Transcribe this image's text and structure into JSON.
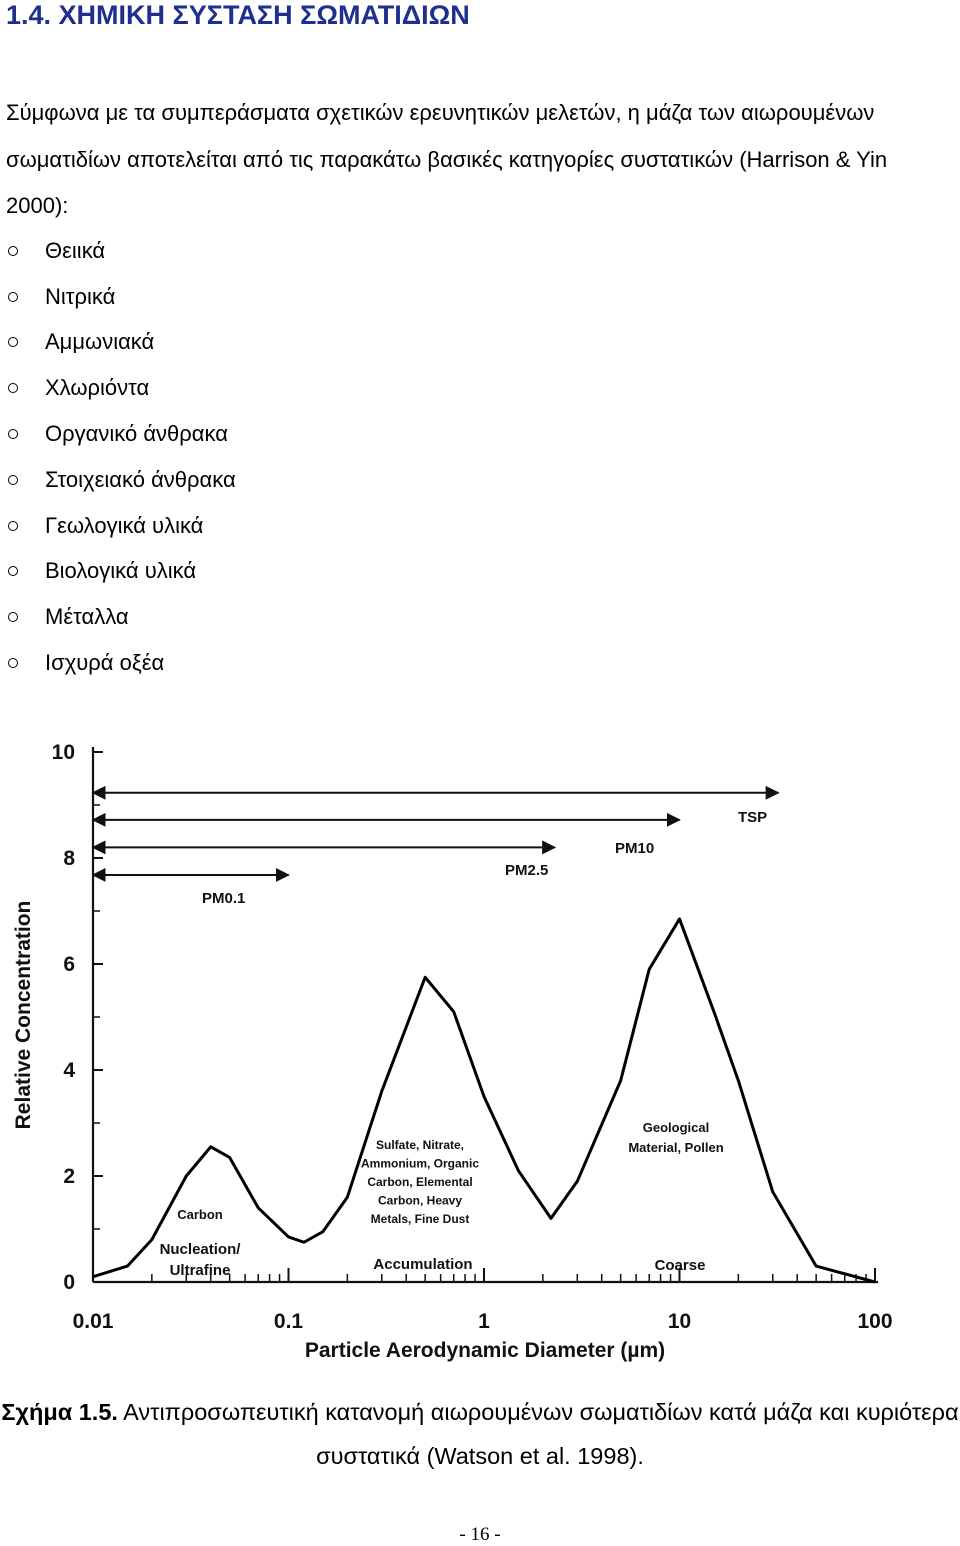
{
  "header": {
    "title": "1.4. ΧΗΜΙΚΗ ΣΥΣΤΑΣΗ ΣΩΜΑΤΙΔΙΩΝ"
  },
  "paragraph": "Σύμφωνα με τα συμπεράσματα σχετικών ερευνητικών μελετών, η μάζα των αιωρουμένων σωματιδίων αποτελείται από τις παρακάτω βασικές κατηγορίες συστατικών (Harrison & Yin 2000):",
  "bullets": [
    "Θειικά",
    "Νιτρικά",
    "Αμμωνιακά",
    "Χλωριόντα",
    "Οργανικό άνθρακα",
    "Στοιχειακό άνθρακα",
    "Γεωλογικά υλικά",
    "Βιολογικά υλικά",
    "Μέταλλα",
    "Ισχυρά οξέα"
  ],
  "chart_data": {
    "type": "line",
    "xlabel": "Particle Aerodynamic Diameter (µm)",
    "ylabel": "Relative Concentration",
    "xscale": "log",
    "xlim": [
      0.01,
      100
    ],
    "ylim": [
      0,
      10
    ],
    "xticks": [
      0.01,
      0.1,
      1,
      10,
      100
    ],
    "yticks": [
      0,
      2,
      4,
      6,
      8,
      10
    ],
    "color": "#000000",
    "x": [
      0.01,
      0.015,
      0.02,
      0.03,
      0.04,
      0.05,
      0.07,
      0.1,
      0.12,
      0.15,
      0.2,
      0.3,
      0.5,
      0.7,
      1,
      1.5,
      2.2,
      3,
      5,
      7,
      10,
      15,
      20,
      30,
      50,
      100
    ],
    "values": [
      0.1,
      0.3,
      0.8,
      2.0,
      2.55,
      2.35,
      1.4,
      0.85,
      0.75,
      0.95,
      1.6,
      3.6,
      5.75,
      5.1,
      3.5,
      2.1,
      1.2,
      1.9,
      3.8,
      5.9,
      6.85,
      5.1,
      3.8,
      1.7,
      0.3,
      0.0
    ],
    "ranges": [
      {
        "name": "TSP",
        "from": 0.01,
        "to": 32,
        "level": 9.23
      },
      {
        "name": "PM10",
        "from": 0.01,
        "to": 10,
        "level": 8.72
      },
      {
        "name": "PM2.5",
        "from": 0.01,
        "to": 2.3,
        "level": 8.2
      },
      {
        "name": "PM0.1",
        "from": 0.01,
        "to": 0.1,
        "level": 7.68
      }
    ],
    "annotations": [
      {
        "lines": [
          "Carbon"
        ]
      },
      {
        "lines": [
          "Nucleation/",
          "Ultrafine"
        ]
      },
      {
        "lines": [
          "Sulfate, Nitrate,",
          "Ammonium, Organic",
          "Carbon, Elemental",
          "Carbon, Heavy",
          "Metals, Fine Dust"
        ]
      },
      {
        "lines": [
          "Accumulation"
        ]
      },
      {
        "lines": [
          "Geological",
          "Material, Pollen"
        ]
      },
      {
        "lines": [
          "Coarse"
        ]
      }
    ]
  },
  "caption": {
    "label": "Σχήμα 1.5.",
    "text": "Αντιπροσωπευτική κατανομή αιωρουμένων σωματιδίων κατά μάζα και κυριότερα συστατικά (Watson et al. 1998)."
  },
  "page_number": "- 16 -"
}
